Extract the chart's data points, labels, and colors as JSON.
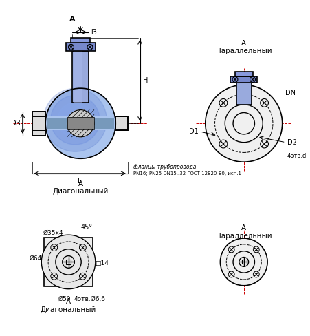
{
  "bg_color": "#ffffff",
  "line_color": "#000000",
  "blue_dark": "#1a3a8c",
  "blue_mid": "#4466cc",
  "blue_light": "#aabbee",
  "centerline_color": "#cc0000",
  "label_A_diag": "A\nДиагональный",
  "label_A_par": "A\nПараллельный",
  "label_flanges": "фланцы трубопровода",
  "label_gost": "PN16; PN25 DN15..32 ГОСТ 12820-80, исп.1",
  "label_dim_L": "L",
  "label_dim_H": "H",
  "label_dim_l3": "l3",
  "label_dim_D3": "D3",
  "label_dim_D1": "D1",
  "label_dim_D2": "D2",
  "label_dim_DN": "DN",
  "label_dim_4otv_d": "4отв.d",
  "label_dim_035x4": "Ø35х4",
  "label_dim_064": "Ø64",
  "label_dim_050": "Ø50",
  "label_dim_4otv_066": "4отв.Ø6,6",
  "label_dim_14": "□14",
  "label_dim_45": "45°",
  "label_A_top": "A"
}
